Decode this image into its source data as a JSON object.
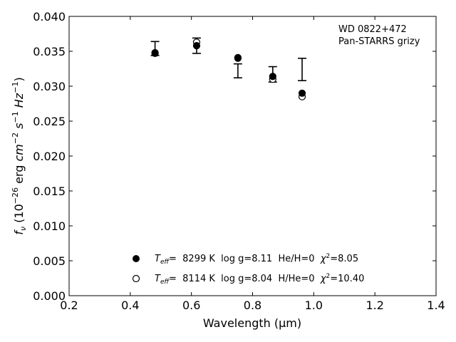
{
  "chart_data": {
    "type": "scatter",
    "xlabel": "Wavelength (μm)",
    "ylabel": {
      "prefix": "f",
      "prefix_sub": "ν",
      "paren_open": " (10",
      "exp1": "−26",
      "erg": " erg ",
      "cm": "cm",
      "exp2": "−2",
      "s": " s",
      "exp3": "−1",
      "hz": " Hz",
      "exp4": "−1",
      "paren_close": ")"
    },
    "xlim": [
      0.2,
      1.4
    ],
    "ylim": [
      0.0,
      0.04
    ],
    "x_ticks": [
      "0.2",
      "0.4",
      "0.6",
      "0.8",
      "1.0",
      "1.2",
      "1.4"
    ],
    "y_ticks": [
      "0.000",
      "0.005",
      "0.010",
      "0.015",
      "0.020",
      "0.025",
      "0.030",
      "0.035",
      "0.040"
    ],
    "annotations": [
      "WD 0822+472",
      "Pan-STARRS grizy"
    ],
    "observed": {
      "x": [
        0.481,
        0.617,
        0.752,
        0.866,
        0.962
      ],
      "y": [
        0.0354,
        0.0358,
        0.0322,
        0.0317,
        0.0324
      ],
      "err": [
        0.001,
        0.0011,
        0.001,
        0.0011,
        0.0016
      ]
    },
    "series": [
      {
        "name": "Teff= 8299 K  log g=8.11  He/H=0  χ2=8.05",
        "marker": "filled-circle",
        "x": [
          0.481,
          0.617,
          0.752,
          0.866,
          0.962
        ],
        "y": [
          0.0348,
          0.0358,
          0.0341,
          0.0314,
          0.029
        ]
      },
      {
        "name": "Teff= 8114 K  log g=8.04  H/He=0  χ2=10.40",
        "marker": "open-circle",
        "x": [
          0.481,
          0.617,
          0.752,
          0.866,
          0.962
        ],
        "y": [
          0.0347,
          0.0363,
          0.034,
          0.031,
          0.0285
        ]
      }
    ],
    "legend": {
      "placement": "bottom-center",
      "entries": [
        {
          "teff_label": "T",
          "teff_sub": "eff",
          "teff_value": "=  8299 K  log g=8.11  He/H=0  ",
          "chi": "χ",
          "chi_sup": "2",
          "chi_value": "=8.05"
        },
        {
          "teff_label": "T",
          "teff_sub": "eff",
          "teff_value": "=  8114 K  log g=8.04  H/He=0  ",
          "chi": "χ",
          "chi_sup": "2",
          "chi_value": "=10.40"
        }
      ]
    }
  }
}
